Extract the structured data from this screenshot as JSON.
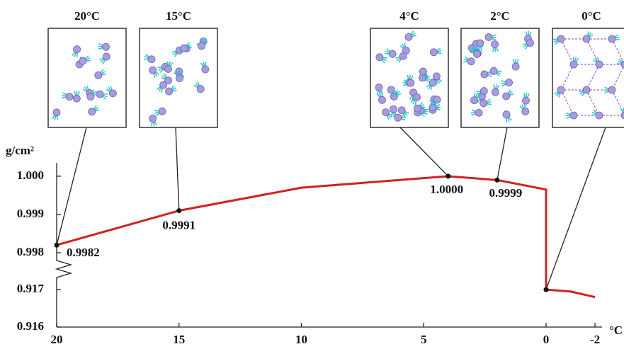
{
  "chart_data": {
    "type": "line",
    "y_label": "g/cm²",
    "x_label": "°C",
    "x": [
      20,
      15,
      10,
      5,
      4,
      2,
      0,
      0,
      -1,
      -2
    ],
    "values": [
      0.9982,
      0.9991,
      0.9997,
      0.99995,
      1.0,
      0.9999,
      0.99965,
      0.917,
      0.91695,
      0.9168
    ],
    "color": "#d42020",
    "xlim": [
      20,
      -2.2
    ],
    "xticks": [
      20,
      15,
      10,
      5,
      0,
      -2
    ],
    "y_segments": [
      {
        "ylim": [
          0.99776,
          1.00035
        ],
        "yticks": [
          {
            "value": 0.998,
            "label": "0.998"
          },
          {
            "value": 0.999,
            "label": "0.999"
          },
          {
            "value": 1.0,
            "label": "1.000"
          }
        ]
      },
      {
        "ylim": [
          0.916,
          0.91721
        ],
        "yticks": [
          {
            "value": 0.916,
            "label": "0.916"
          },
          {
            "value": 0.917,
            "label": "0.917"
          }
        ]
      }
    ],
    "markers": [
      {
        "x": 20,
        "value": 0.9982,
        "label": "0.9982",
        "inset": "20°C"
      },
      {
        "x": 15,
        "value": 0.9991,
        "label": "0.9991",
        "inset": "15°C"
      },
      {
        "x": 4,
        "value": 1.0,
        "label": "1.0000",
        "inset": "4°C"
      },
      {
        "x": 2,
        "value": 0.9999,
        "label": "0.9999",
        "inset": "2°C"
      },
      {
        "x": 0,
        "value": 0.917,
        "inset": "0°C"
      }
    ]
  }
}
